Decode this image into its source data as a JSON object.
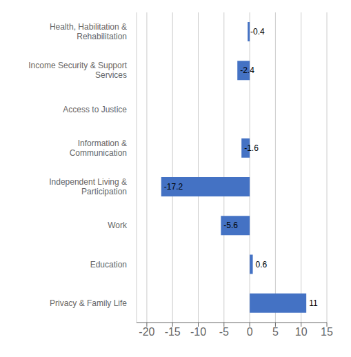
{
  "chart_data": {
    "type": "bar",
    "orientation": "horizontal",
    "categories": [
      "Health, Habilitation &\nRehabilitation",
      "Income Security & Support\nServices",
      "Access to Justice",
      "Information &\nCommunication",
      "Independent Living &\nParticipation",
      "Work",
      "Education",
      "Privacy & Family Life"
    ],
    "values": [
      -0.4,
      -2.4,
      0,
      -1.6,
      -17.2,
      -5.6,
      0.6,
      11
    ],
    "color": "#4472C4",
    "xlim": [
      -22,
      15
    ],
    "xticks": [
      -20,
      -15,
      -10,
      -5,
      0,
      5,
      10,
      15
    ],
    "grid": true,
    "data_labels": true
  }
}
